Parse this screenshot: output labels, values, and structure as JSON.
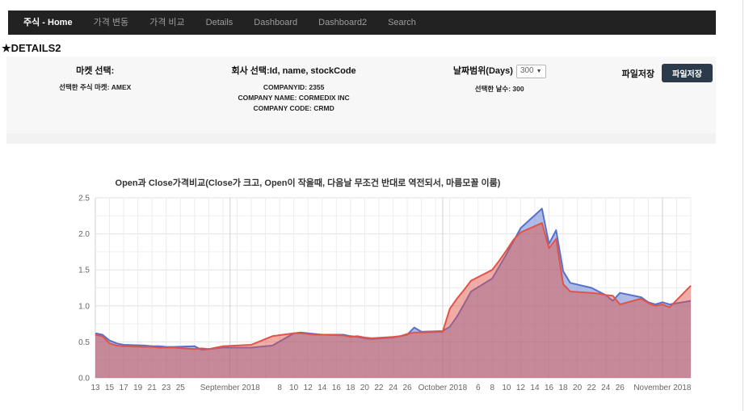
{
  "navbar": {
    "items": [
      {
        "label": "주식 - Home",
        "active": true
      },
      {
        "label": "가격 변동",
        "active": false
      },
      {
        "label": "가격 비교",
        "active": false
      },
      {
        "label": "Details",
        "active": false
      },
      {
        "label": "Dashboard",
        "active": false
      },
      {
        "label": "Dashboard2",
        "active": false
      },
      {
        "label": "Search",
        "active": false
      }
    ]
  },
  "page_title": "★DETAILS2",
  "panel": {
    "market": {
      "label": "마켓 선택:",
      "selected": "선택한 주식 마켓: AMEX"
    },
    "company": {
      "label": "회사 선택:Id, name, stockCode",
      "id": "COMPANYID: 2355",
      "name": "COMPANY NAME: CORMEDIX INC",
      "code": "COMPANY CODE: CRMD"
    },
    "date_range": {
      "label": "날짜범위(Days)",
      "select_value": "300",
      "selected": "선택한 날수: 300"
    },
    "file_save": {
      "label": "파일저장",
      "button": "파일저장"
    }
  },
  "chart_data": {
    "type": "area",
    "title": "Open과 Close가격비교(Close가 크고, Open이 작을때, 다음날 무조건 반대로 역전되서, 마름모꼴 이룸)",
    "legend_position": "none",
    "grid": true,
    "ylim": [
      0,
      2.5
    ],
    "y_minor_step": 0.25,
    "yticks": [
      "0.0",
      "0.5",
      "1.0",
      "1.5",
      "2.0",
      "2.5"
    ],
    "x_type": "time",
    "x_range": [
      "2018-08-13",
      "2018-11-05"
    ],
    "month_lines": [
      "2018-09-01",
      "2018-10-01",
      "2018-11-01"
    ],
    "xticks": [
      {
        "date": "2018-08-13",
        "label": "13"
      },
      {
        "date": "2018-08-15",
        "label": "15"
      },
      {
        "date": "2018-08-17",
        "label": "17"
      },
      {
        "date": "2018-08-19",
        "label": "19"
      },
      {
        "date": "2018-08-21",
        "label": "21"
      },
      {
        "date": "2018-08-23",
        "label": "23"
      },
      {
        "date": "2018-08-25",
        "label": "25"
      },
      {
        "date": "2018-09-01",
        "label": "September 2018"
      },
      {
        "date": "2018-09-08",
        "label": "8"
      },
      {
        "date": "2018-09-10",
        "label": "10"
      },
      {
        "date": "2018-09-12",
        "label": "12"
      },
      {
        "date": "2018-09-14",
        "label": "14"
      },
      {
        "date": "2018-09-16",
        "label": "16"
      },
      {
        "date": "2018-09-18",
        "label": "18"
      },
      {
        "date": "2018-09-20",
        "label": "20"
      },
      {
        "date": "2018-09-22",
        "label": "22"
      },
      {
        "date": "2018-09-24",
        "label": "24"
      },
      {
        "date": "2018-09-26",
        "label": "26"
      },
      {
        "date": "2018-10-01",
        "label": "October 2018"
      },
      {
        "date": "2018-10-06",
        "label": "6"
      },
      {
        "date": "2018-10-08",
        "label": "8"
      },
      {
        "date": "2018-10-10",
        "label": "10"
      },
      {
        "date": "2018-10-12",
        "label": "12"
      },
      {
        "date": "2018-10-14",
        "label": "14"
      },
      {
        "date": "2018-10-16",
        "label": "16"
      },
      {
        "date": "2018-10-18",
        "label": "18"
      },
      {
        "date": "2018-10-20",
        "label": "20"
      },
      {
        "date": "2018-10-22",
        "label": "22"
      },
      {
        "date": "2018-10-24",
        "label": "24"
      },
      {
        "date": "2018-10-26",
        "label": "26"
      },
      {
        "date": "2018-11-01",
        "label": "November 2018"
      }
    ],
    "dates": [
      "2018-08-13",
      "2018-08-14",
      "2018-08-15",
      "2018-08-16",
      "2018-08-17",
      "2018-08-20",
      "2018-08-21",
      "2018-08-22",
      "2018-08-23",
      "2018-08-24",
      "2018-08-27",
      "2018-08-28",
      "2018-08-29",
      "2018-08-30",
      "2018-08-31",
      "2018-09-04",
      "2018-09-05",
      "2018-09-06",
      "2018-09-07",
      "2018-09-10",
      "2018-09-11",
      "2018-09-12",
      "2018-09-13",
      "2018-09-14",
      "2018-09-17",
      "2018-09-18",
      "2018-09-19",
      "2018-09-20",
      "2018-09-21",
      "2018-09-24",
      "2018-09-25",
      "2018-09-26",
      "2018-09-27",
      "2018-09-28",
      "2018-10-01",
      "2018-10-02",
      "2018-10-03",
      "2018-10-04",
      "2018-10-05",
      "2018-10-08",
      "2018-10-09",
      "2018-10-10",
      "2018-10-11",
      "2018-10-12",
      "2018-10-15",
      "2018-10-16",
      "2018-10-17",
      "2018-10-18",
      "2018-10-19",
      "2018-10-22",
      "2018-10-23",
      "2018-10-24",
      "2018-10-25",
      "2018-10-26",
      "2018-10-29",
      "2018-10-30",
      "2018-10-31",
      "2018-11-01",
      "2018-11-02",
      "2018-11-05"
    ],
    "series": [
      {
        "name": "Open",
        "color": "#5870cd",
        "fill_opacity": 0.48,
        "values": [
          0.62,
          0.6,
          0.52,
          0.48,
          0.46,
          0.45,
          0.44,
          0.44,
          0.43,
          0.43,
          0.44,
          0.39,
          0.4,
          0.41,
          0.42,
          0.42,
          0.43,
          0.44,
          0.45,
          0.62,
          0.63,
          0.62,
          0.61,
          0.6,
          0.6,
          0.58,
          0.57,
          0.55,
          0.54,
          0.56,
          0.58,
          0.6,
          0.7,
          0.64,
          0.65,
          0.71,
          0.85,
          1.02,
          1.2,
          1.38,
          1.55,
          1.72,
          1.9,
          2.08,
          2.35,
          1.86,
          2.05,
          1.48,
          1.32,
          1.25,
          1.2,
          1.15,
          1.07,
          1.18,
          1.12,
          1.05,
          1.02,
          1.05,
          1.02,
          1.07
        ]
      },
      {
        "name": "Close",
        "color": "#e05448",
        "fill_opacity": 0.48,
        "values": [
          0.6,
          0.58,
          0.48,
          0.45,
          0.44,
          0.43,
          0.43,
          0.42,
          0.42,
          0.42,
          0.4,
          0.41,
          0.4,
          0.42,
          0.44,
          0.46,
          0.5,
          0.54,
          0.58,
          0.62,
          0.62,
          0.61,
          0.6,
          0.6,
          0.59,
          0.57,
          0.58,
          0.56,
          0.55,
          0.57,
          0.58,
          0.61,
          0.63,
          0.63,
          0.64,
          0.96,
          1.1,
          1.22,
          1.35,
          1.5,
          1.63,
          1.77,
          1.92,
          2.02,
          2.15,
          1.8,
          1.93,
          1.3,
          1.2,
          1.18,
          1.17,
          1.15,
          1.14,
          1.02,
          1.1,
          1.04,
          1.0,
          1.02,
          0.98,
          1.28
        ]
      }
    ]
  }
}
